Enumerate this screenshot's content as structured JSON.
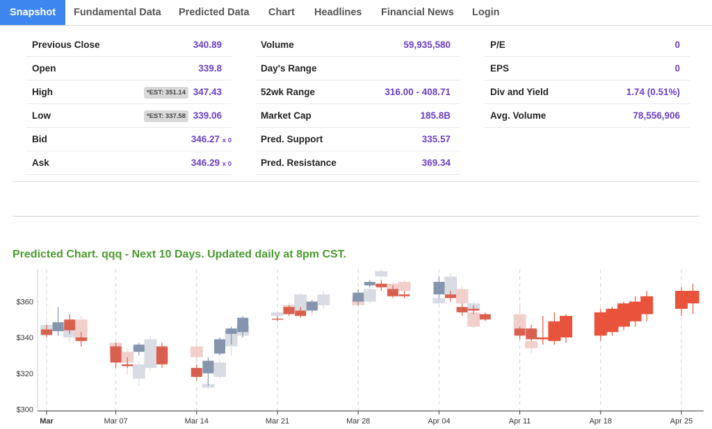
{
  "nav": {
    "tabs": [
      {
        "label": "Snapshot",
        "active": true
      },
      {
        "label": "Fundamental Data"
      },
      {
        "label": "Predicted Data"
      },
      {
        "label": "Chart"
      },
      {
        "label": "Headlines"
      },
      {
        "label": "Financial News"
      },
      {
        "label": "Login"
      }
    ]
  },
  "stats": {
    "col1": [
      {
        "label": "Previous Close",
        "value": "340.89"
      },
      {
        "label": "Open",
        "value": "339.8"
      },
      {
        "label": "High",
        "value": "347.43",
        "est": "*EST: 351.14"
      },
      {
        "label": "Low",
        "value": "339.06",
        "est": "*EST: 337.58"
      },
      {
        "label": "Bid",
        "value": "346.27",
        "mult": "x 0"
      },
      {
        "label": "Ask",
        "value": "346.29",
        "mult": "x 0"
      }
    ],
    "col2": [
      {
        "label": "Volume",
        "value": "59,935,580"
      },
      {
        "label": "Day's Range",
        "value": ""
      },
      {
        "label": "52wk Range",
        "value": "316.00 - 408.71"
      },
      {
        "label": "Market Cap",
        "value": "185.8B"
      },
      {
        "label": "Pred. Support",
        "value": "335.57"
      },
      {
        "label": "Pred. Resistance",
        "value": "369.34"
      }
    ],
    "col3": [
      {
        "label": "P/E",
        "value": "0"
      },
      {
        "label": "EPS",
        "value": "0"
      },
      {
        "label": "Div and Yield",
        "value": "1.74 (0.51%)"
      },
      {
        "label": "Avg. Volume",
        "value": "78,556,906"
      }
    ]
  },
  "chart_title": "Predicted Chart. qqq - Next 10 Days. Updated daily at 8pm CST.",
  "colors": {
    "accent": "#3d86f0",
    "value_text": "#6a3fc6",
    "chart_title": "#4a9a2f",
    "candle_down": "#d9604f",
    "candle_up": "#8595ae",
    "candle_down_faded": "#efc8c2",
    "candle_up_faded": "#d3d7df",
    "predicted": "#e8533b"
  },
  "chart_data": {
    "type": "candlestick",
    "title": "Predicted Chart. qqq - Next 10 Days. Updated daily at 8pm CST.",
    "y_ticks": [
      "$300",
      "$320",
      "$340",
      "$360"
    ],
    "ylim": [
      299,
      378
    ],
    "x_ticks": [
      {
        "label": "Mar",
        "bold": true,
        "day": 0
      },
      {
        "label": "Mar 07",
        "day": 6
      },
      {
        "label": "Mar 14",
        "day": 13
      },
      {
        "label": "Mar 21",
        "day": 20
      },
      {
        "label": "Mar 28",
        "day": 27
      },
      {
        "label": "Apr 04",
        "day": 34
      },
      {
        "label": "Apr 11",
        "day": 41
      },
      {
        "label": "Apr 18",
        "day": 48
      },
      {
        "label": "Apr 25",
        "day": 55
      }
    ],
    "candles": [
      {
        "date": "Mar 01",
        "day": 0,
        "open": 344.5,
        "close": 341.5,
        "high": 347,
        "low": 340,
        "style": "down"
      },
      {
        "date": "Mar 01",
        "day": 0,
        "open": 347,
        "close": 341,
        "high": 349,
        "low": 340,
        "style": "up_faded"
      },
      {
        "date": "Mar 02",
        "day": 1,
        "open": 343.5,
        "close": 348.5,
        "high": 357,
        "low": 341,
        "style": "up"
      },
      {
        "date": "Mar 03",
        "day": 2,
        "open": 350,
        "close": 344,
        "high": 353,
        "low": 342,
        "style": "down"
      },
      {
        "date": "Mar 03",
        "day": 2,
        "open": 346,
        "close": 340,
        "high": 349,
        "low": 337,
        "style": "up_faded"
      },
      {
        "date": "Mar 04",
        "day": 3,
        "open": 340,
        "close": 338,
        "high": 343,
        "low": 335,
        "style": "down"
      },
      {
        "date": "Mar 04",
        "day": 3,
        "open": 350,
        "close": 338,
        "high": 352,
        "low": 336,
        "style": "down_faded"
      },
      {
        "date": "Mar 07",
        "day": 6,
        "open": 335,
        "close": 326,
        "high": 337,
        "low": 323,
        "style": "down"
      },
      {
        "date": "Mar 07",
        "day": 6,
        "open": 337,
        "close": 330,
        "high": 339,
        "low": 328,
        "style": "down_faded"
      },
      {
        "date": "Mar 08",
        "day": 7,
        "open": 325,
        "close": 324,
        "high": 329,
        "low": 323,
        "style": "down"
      },
      {
        "date": "Mar 08",
        "day": 7,
        "open": 332,
        "close": 326,
        "high": 334,
        "low": 319,
        "style": "down_faded"
      },
      {
        "date": "Mar 09",
        "day": 8,
        "open": 332,
        "close": 336,
        "high": 337,
        "low": 330,
        "style": "up"
      },
      {
        "date": "Mar 09",
        "day": 8,
        "open": 325,
        "close": 317,
        "high": 327,
        "low": 313,
        "style": "up_faded"
      },
      {
        "date": "Mar 10",
        "day": 9,
        "open": 323,
        "close": 339,
        "high": 341,
        "low": 321,
        "style": "up_faded"
      },
      {
        "date": "Mar 11",
        "day": 10,
        "open": 335,
        "close": 325,
        "high": 337,
        "low": 323,
        "style": "down"
      },
      {
        "date": "Mar 11",
        "day": 10,
        "open": 334,
        "close": 326,
        "high": 338,
        "low": 324,
        "style": "down_faded"
      },
      {
        "date": "Mar 14",
        "day": 13,
        "open": 323,
        "close": 318,
        "high": 325,
        "low": 316,
        "style": "down"
      },
      {
        "date": "Mar 14",
        "day": 13,
        "open": 335,
        "close": 329,
        "high": 337,
        "low": 327,
        "style": "down_faded"
      },
      {
        "date": "Mar 15",
        "day": 14,
        "open": 320,
        "close": 327,
        "high": 329,
        "low": 313,
        "style": "up"
      },
      {
        "date": "Mar 15",
        "day": 14,
        "open": 314,
        "close": 312,
        "high": 316,
        "low": 311,
        "style": "up_faded"
      },
      {
        "date": "Mar 16",
        "day": 15,
        "open": 331,
        "close": 339,
        "high": 340,
        "low": 330,
        "style": "up"
      },
      {
        "date": "Mar 16",
        "day": 15,
        "open": 326,
        "close": 318,
        "high": 328,
        "low": 317,
        "style": "up_faded"
      },
      {
        "date": "Mar 17",
        "day": 16,
        "open": 342,
        "close": 345,
        "high": 346,
        "low": 336,
        "style": "up"
      },
      {
        "date": "Mar 17",
        "day": 16,
        "open": 344,
        "close": 335,
        "high": 346,
        "low": 330,
        "style": "up_faded"
      },
      {
        "date": "Mar 18",
        "day": 17,
        "open": 343,
        "close": 351,
        "high": 352,
        "low": 340,
        "style": "up"
      },
      {
        "date": "Mar 18",
        "day": 17,
        "open": 347,
        "close": 341,
        "high": 349,
        "low": 340,
        "style": "up_faded"
      },
      {
        "date": "Mar 21",
        "day": 20,
        "open": 350,
        "close": 350.5,
        "high": 352,
        "low": 349,
        "style": "down"
      },
      {
        "date": "Mar 21",
        "day": 20,
        "open": 354,
        "close": 352,
        "high": 355,
        "low": 351,
        "style": "up_faded"
      },
      {
        "date": "Mar 22",
        "day": 21,
        "open": 353,
        "close": 357,
        "high": 358,
        "low": 352,
        "style": "down"
      },
      {
        "date": "Mar 22",
        "day": 21,
        "open": 358,
        "close": 355,
        "high": 359,
        "low": 354,
        "style": "down_faded"
      },
      {
        "date": "Mar 23",
        "day": 22,
        "open": 355,
        "close": 352,
        "high": 357,
        "low": 351,
        "style": "down"
      },
      {
        "date": "Mar 23",
        "day": 22,
        "open": 364,
        "close": 355,
        "high": 365,
        "low": 354,
        "style": "up_faded"
      },
      {
        "date": "Mar 24",
        "day": 23,
        "open": 355,
        "close": 360,
        "high": 361,
        "low": 354,
        "style": "up"
      },
      {
        "date": "Mar 24",
        "day": 23,
        "open": 359,
        "close": 356,
        "high": 360,
        "low": 352,
        "style": "down_faded"
      },
      {
        "date": "Mar 25",
        "day": 24,
        "open": 358,
        "close": 364,
        "high": 366,
        "low": 356,
        "style": "up_faded"
      },
      {
        "date": "Mar 28",
        "day": 27,
        "open": 360,
        "close": 365,
        "high": 367,
        "low": 358,
        "style": "up"
      },
      {
        "date": "Mar 28",
        "day": 27,
        "open": 362,
        "close": 358,
        "high": 363,
        "low": 357,
        "style": "down_faded"
      },
      {
        "date": "Mar 29",
        "day": 28,
        "open": 369,
        "close": 371,
        "high": 372,
        "low": 368,
        "style": "up"
      },
      {
        "date": "Mar 29",
        "day": 28,
        "open": 367,
        "close": 360,
        "high": 369,
        "low": 359,
        "style": "up_faded"
      },
      {
        "date": "Mar 30",
        "day": 29,
        "open": 370,
        "close": 368,
        "high": 372,
        "low": 366,
        "style": "down"
      },
      {
        "date": "Mar 30",
        "day": 29,
        "open": 377,
        "close": 374,
        "high": 378,
        "low": 373,
        "style": "up_faded"
      },
      {
        "date": "Mar 31",
        "day": 30,
        "open": 367,
        "close": 363,
        "high": 369,
        "low": 362,
        "style": "down"
      },
      {
        "date": "Mar 31",
        "day": 30,
        "open": 370,
        "close": 367,
        "high": 371,
        "low": 366,
        "style": "down_faded"
      },
      {
        "date": "Apr 01",
        "day": 31,
        "open": 364,
        "close": 363,
        "high": 366,
        "low": 362,
        "style": "down"
      },
      {
        "date": "Apr 01",
        "day": 31,
        "open": 371,
        "close": 366,
        "high": 372,
        "low": 365,
        "style": "down_faded"
      },
      {
        "date": "Apr 04",
        "day": 34,
        "open": 364,
        "close": 371,
        "high": 374,
        "low": 362,
        "style": "up"
      },
      {
        "date": "Apr 04",
        "day": 34,
        "open": 362,
        "close": 359,
        "high": 364,
        "low": 358,
        "style": "up_faded"
      },
      {
        "date": "Apr 05",
        "day": 35,
        "open": 364,
        "close": 362,
        "high": 366,
        "low": 360,
        "style": "down"
      },
      {
        "date": "Apr 05",
        "day": 35,
        "open": 374,
        "close": 364,
        "high": 376,
        "low": 363,
        "style": "up_faded"
      },
      {
        "date": "Apr 06",
        "day": 36,
        "open": 357,
        "close": 354,
        "high": 359,
        "low": 352,
        "style": "down"
      },
      {
        "date": "Apr 06",
        "day": 36,
        "open": 367,
        "close": 359,
        "high": 369,
        "low": 358,
        "style": "down_faded"
      },
      {
        "date": "Apr 07",
        "day": 37,
        "open": 356,
        "close": 355,
        "high": 358,
        "low": 353,
        "style": "down"
      },
      {
        "date": "Apr 07",
        "day": 37,
        "open": 354,
        "close": 346,
        "high": 356,
        "low": 345,
        "style": "down_faded"
      },
      {
        "date": "Apr 07",
        "day": 37,
        "open": 359,
        "close": 355,
        "high": 360,
        "low": 353,
        "style": "up_faded"
      },
      {
        "date": "Apr 08",
        "day": 38,
        "open": 353,
        "close": 350,
        "high": 354,
        "low": 349,
        "style": "down"
      },
      {
        "date": "Apr 11",
        "day": 41,
        "open": 345,
        "close": 341,
        "high": 346,
        "low": 339,
        "style": "down"
      },
      {
        "date": "Apr 11",
        "day": 41,
        "open": 353,
        "close": 345,
        "high": 359,
        "low": 344,
        "style": "down_faded"
      },
      {
        "date": "Apr 12",
        "day": 42,
        "open": 345,
        "close": 339,
        "high": 347,
        "low": 338,
        "style": "down"
      },
      {
        "date": "Apr 12",
        "day": 42,
        "open": 338,
        "close": 334,
        "high": 340,
        "low": 331,
        "style": "down_faded"
      },
      {
        "date": "Apr 13",
        "day": 43,
        "open": 340,
        "close": 339,
        "high": 352,
        "low": 336,
        "style": "predicted"
      },
      {
        "date": "Apr 14",
        "day": 44,
        "open": 338,
        "close": 349,
        "high": 354,
        "low": 336,
        "style": "predicted"
      },
      {
        "date": "Apr 15",
        "day": 45,
        "open": 340,
        "close": 352,
        "high": 353,
        "low": 337,
        "style": "predicted"
      },
      {
        "date": "Apr 18",
        "day": 48,
        "open": 341,
        "close": 354,
        "high": 356,
        "low": 338,
        "style": "predicted"
      },
      {
        "date": "Apr 19",
        "day": 49,
        "open": 343,
        "close": 356,
        "high": 357,
        "low": 341,
        "style": "predicted"
      },
      {
        "date": "Apr 20",
        "day": 50,
        "open": 346,
        "close": 359,
        "high": 360,
        "low": 344,
        "style": "predicted"
      },
      {
        "date": "Apr 21",
        "day": 51,
        "open": 349,
        "close": 360,
        "high": 363,
        "low": 346,
        "style": "predicted"
      },
      {
        "date": "Apr 22",
        "day": 52,
        "open": 353,
        "close": 363,
        "high": 366,
        "low": 349,
        "style": "predicted"
      },
      {
        "date": "Apr 25",
        "day": 55,
        "open": 356,
        "close": 366,
        "high": 368,
        "low": 352,
        "style": "predicted"
      },
      {
        "date": "Apr 26",
        "day": 56,
        "open": 359,
        "close": 366,
        "high": 370,
        "low": 353,
        "style": "predicted"
      }
    ]
  }
}
